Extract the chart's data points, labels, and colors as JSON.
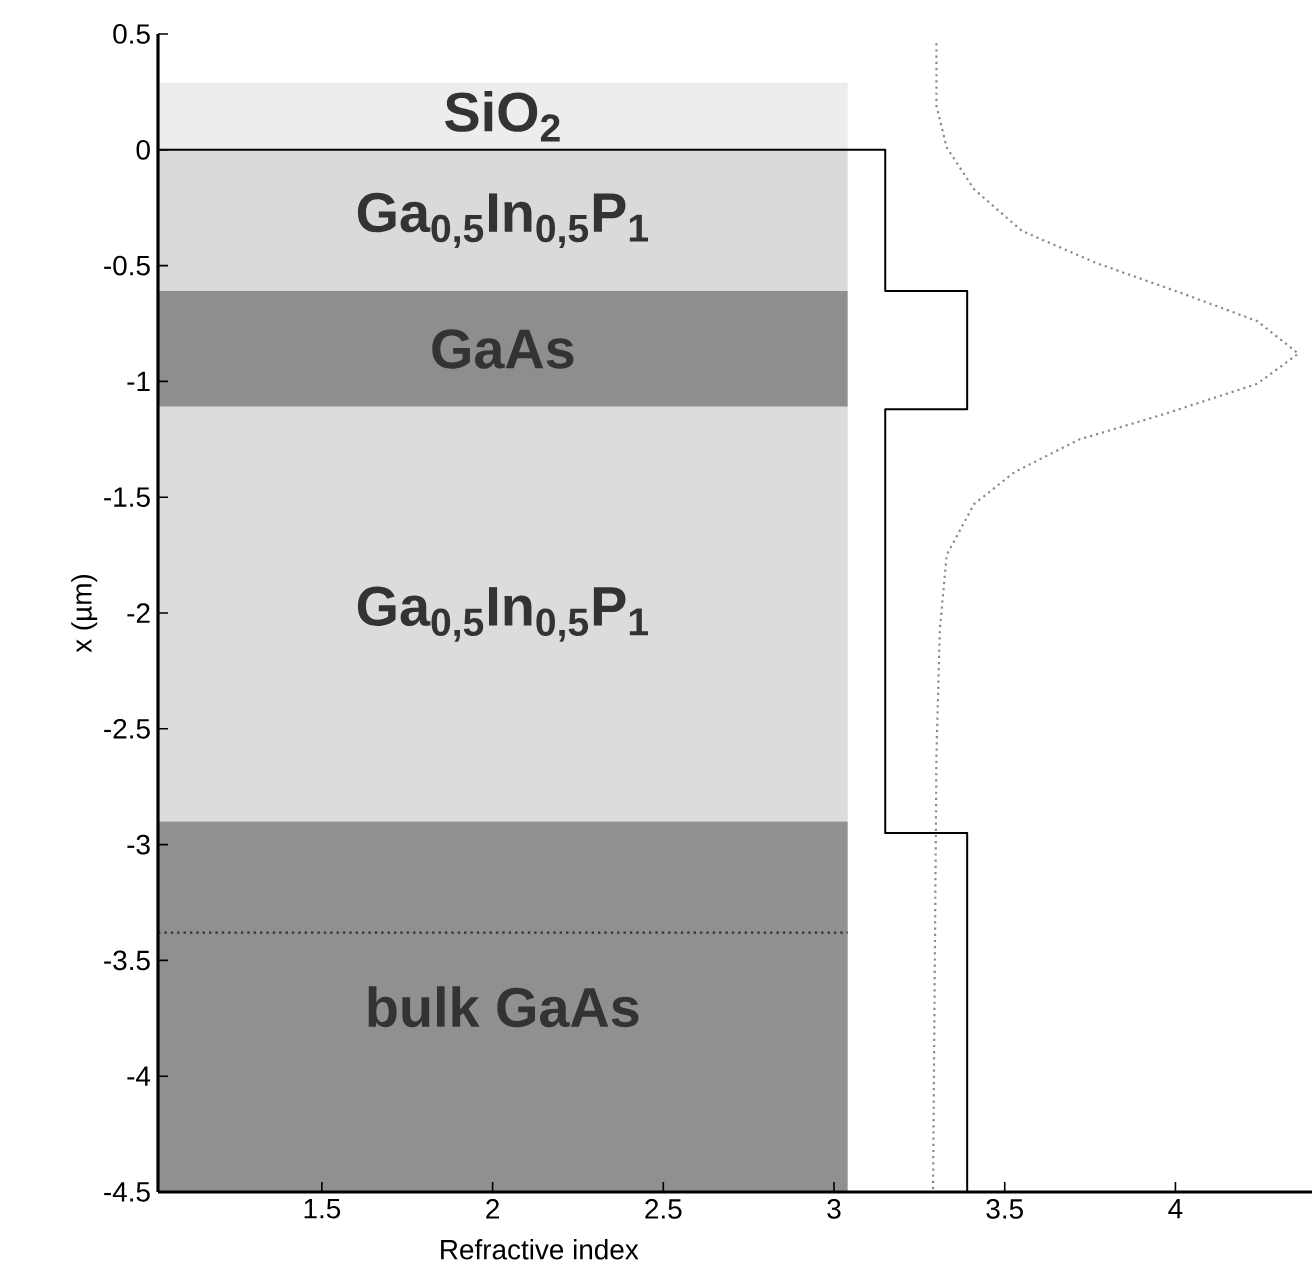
{
  "chart_data": {
    "type": "line",
    "xlabel": "Refractive index",
    "ylabel": "x (µm)",
    "xlim": [
      1.02,
      4.4
    ],
    "ylim": [
      -4.5,
      0.5
    ],
    "xticks": [
      1.5,
      2,
      2.5,
      3,
      3.5,
      4
    ],
    "yticks": [
      0.5,
      0,
      -0.5,
      -1,
      -1.5,
      -2,
      -2.5,
      -3,
      -3.5,
      -4,
      -4.5
    ],
    "grid": false,
    "series": [
      {
        "type": "line",
        "color": "#000000",
        "line_style": "solid",
        "x": [
          1.02,
          3.15,
          3.15,
          3.39,
          3.39,
          3.15,
          3.15,
          3.39,
          3.39
        ],
        "values": [
          0,
          0,
          -0.61,
          -0.61,
          -1.12,
          -1.12,
          -2.95,
          -2.95,
          -4.5
        ]
      },
      {
        "type": "line",
        "color": "#8a8a8a",
        "line_style": "dotted",
        "x": [
          3.3,
          3.3,
          3.33,
          3.41,
          3.55,
          3.77,
          4.02,
          4.24,
          4.36,
          4.24,
          3.97,
          3.72,
          3.53,
          3.41,
          3.33,
          3.31,
          3.3,
          3.29
        ],
        "values": [
          0.46,
          0.19,
          0.01,
          -0.17,
          -0.35,
          -0.49,
          -0.62,
          -0.74,
          -0.88,
          -1.01,
          -1.14,
          -1.25,
          -1.39,
          -1.53,
          -1.75,
          -2.07,
          -2.61,
          -4.5
        ]
      }
    ],
    "bands": [
      {
        "axis": "y",
        "from": 0,
        "to": 0.29,
        "label": "SiO$_{2}$",
        "color": "#ededed"
      },
      {
        "axis": "y",
        "from": -0.61,
        "to": 0,
        "label": "Ga$_{0,5}$In$_{0,5}$P$_{1}$",
        "color": "#dadada"
      },
      {
        "axis": "y",
        "from": -1.11,
        "to": -0.61,
        "label": "GaAs",
        "color": "#8e8e8e"
      },
      {
        "axis": "y",
        "from": -2.9,
        "to": -1.11,
        "label": "Ga$_{0,5}$In$_{0,5}$P$_{1}$",
        "color": "#dcdcdc"
      },
      {
        "axis": "y",
        "from": -4.5,
        "to": -2.9,
        "label": "bulk GaAs",
        "color": "#909090"
      }
    ],
    "ref_lines": [
      {
        "axis": "y",
        "value": -3.38,
        "color": "#333333",
        "line_style": "dotted"
      }
    ]
  }
}
